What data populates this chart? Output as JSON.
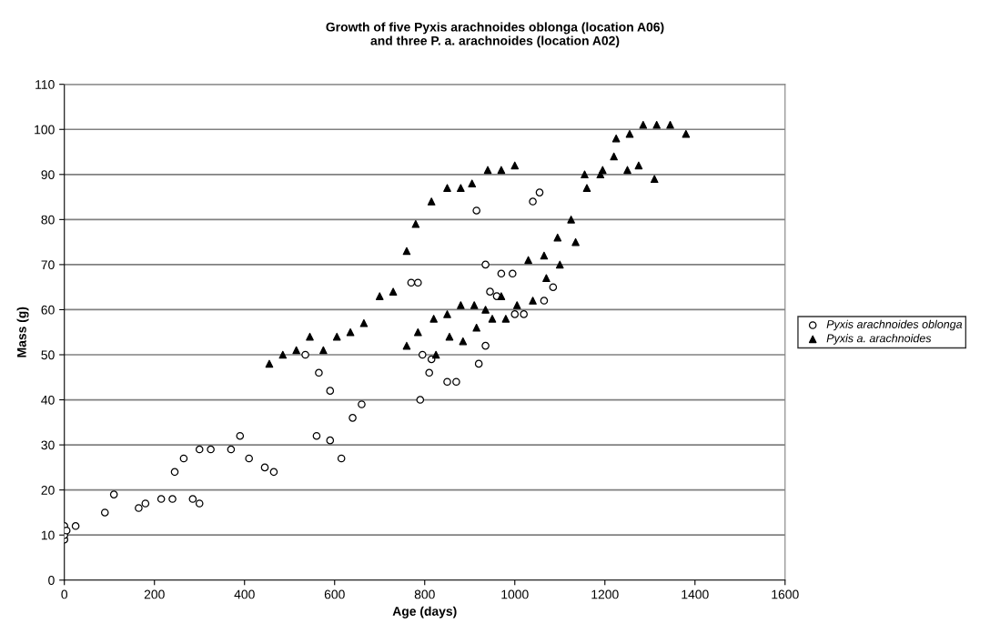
{
  "chart_data": {
    "type": "scatter",
    "title": "Growth of five Pyxis arachnoides oblonga (location A06)\nand three P. a. arachnoides (location A02)",
    "xlabel": "Age (days)",
    "ylabel": "Mass (g)",
    "xlim": [
      0,
      1600
    ],
    "xticks": [
      0,
      200,
      400,
      600,
      800,
      1000,
      1200,
      1400,
      1600
    ],
    "ylim": [
      0,
      110
    ],
    "yticks": [
      0,
      10,
      20,
      30,
      40,
      50,
      60,
      70,
      80,
      90,
      100,
      110
    ],
    "grid": "y",
    "legend": "right",
    "series": [
      {
        "name": "Pyxis arachnoides oblonga",
        "color": "#ffffff",
        "marker": "circle",
        "x": [
          0,
          0,
          0,
          5,
          25,
          90,
          110,
          165,
          180,
          215,
          240,
          245,
          265,
          285,
          300,
          300,
          325,
          370,
          390,
          410,
          445,
          465,
          535,
          565,
          590,
          560,
          590,
          615,
          640,
          660,
          770,
          785,
          790,
          795,
          810,
          815,
          850,
          870,
          915,
          920,
          935,
          935,
          945,
          960,
          970,
          995,
          1000,
          1020,
          1040,
          1055,
          1065,
          1085
        ],
        "values": [
          9,
          10,
          12,
          11,
          12,
          15,
          19,
          16,
          17,
          18,
          18,
          24,
          27,
          18,
          17,
          29,
          29,
          29,
          32,
          27,
          25,
          24,
          50,
          46,
          42,
          32,
          31,
          27,
          36,
          39,
          66,
          66,
          40,
          50,
          46,
          49,
          44,
          44,
          82,
          48,
          70,
          52,
          64,
          63,
          68,
          68,
          59,
          59,
          84,
          86,
          62,
          65
        ]
      },
      {
        "name": "Pyxis a. arachnoides",
        "color": "#000000",
        "marker": "triangle",
        "x": [
          455,
          485,
          515,
          545,
          575,
          605,
          635,
          665,
          700,
          730,
          760,
          780,
          815,
          850,
          880,
          905,
          940,
          970,
          1000,
          760,
          785,
          820,
          825,
          850,
          855,
          880,
          885,
          910,
          915,
          935,
          950,
          970,
          980,
          1005,
          1030,
          1040,
          1065,
          1070,
          1095,
          1100,
          1125,
          1135,
          1155,
          1160,
          1190,
          1195,
          1220,
          1225,
          1250,
          1255,
          1275,
          1285,
          1310,
          1315,
          1345,
          1380
        ],
        "values": [
          48,
          50,
          51,
          54,
          51,
          54,
          55,
          57,
          63,
          64,
          73,
          79,
          84,
          87,
          87,
          88,
          91,
          91,
          92,
          52,
          55,
          58,
          50,
          59,
          54,
          61,
          53,
          61,
          56,
          60,
          58,
          63,
          58,
          61,
          71,
          62,
          72,
          67,
          76,
          70,
          80,
          75,
          90,
          87,
          90,
          91,
          94,
          98,
          91,
          99,
          92,
          101,
          89,
          101,
          101,
          99
        ]
      }
    ]
  }
}
